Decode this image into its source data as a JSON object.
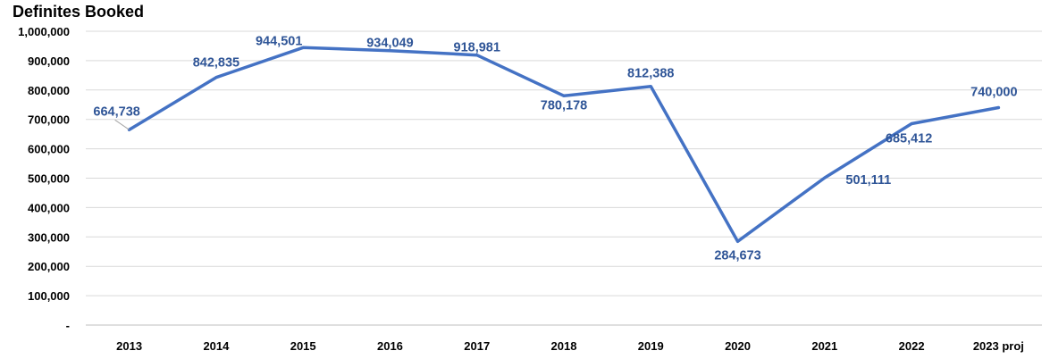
{
  "chart_data": {
    "type": "line",
    "title": "Definites Booked",
    "xlabel": "",
    "ylabel": "",
    "categories": [
      "2013",
      "2014",
      "2015",
      "2016",
      "2017",
      "2018",
      "2019",
      "2020",
      "2021",
      "2022",
      "2023 proj"
    ],
    "series": [
      {
        "name": "Definites Booked",
        "values": [
          664738,
          842835,
          944501,
          934049,
          918981,
          780178,
          812388,
          284673,
          501111,
          685412,
          740000
        ],
        "labels": [
          "664,738",
          "842,835",
          "944,501",
          "934,049",
          "918,981",
          "780,178",
          "812,388",
          "284,673",
          "501,111",
          "685,412",
          "740,000"
        ],
        "color": "#4472C4"
      }
    ],
    "yticks": [
      "-",
      "100,000",
      "200,000",
      "300,000",
      "400,000",
      "500,000",
      "600,000",
      "700,000",
      "800,000",
      "900,000",
      "1,000,000"
    ],
    "ylim": [
      0,
      1000000
    ],
    "grid": true,
    "legend": "none",
    "label_color": "#2F5597",
    "grid_color": "#D9D9D9"
  }
}
